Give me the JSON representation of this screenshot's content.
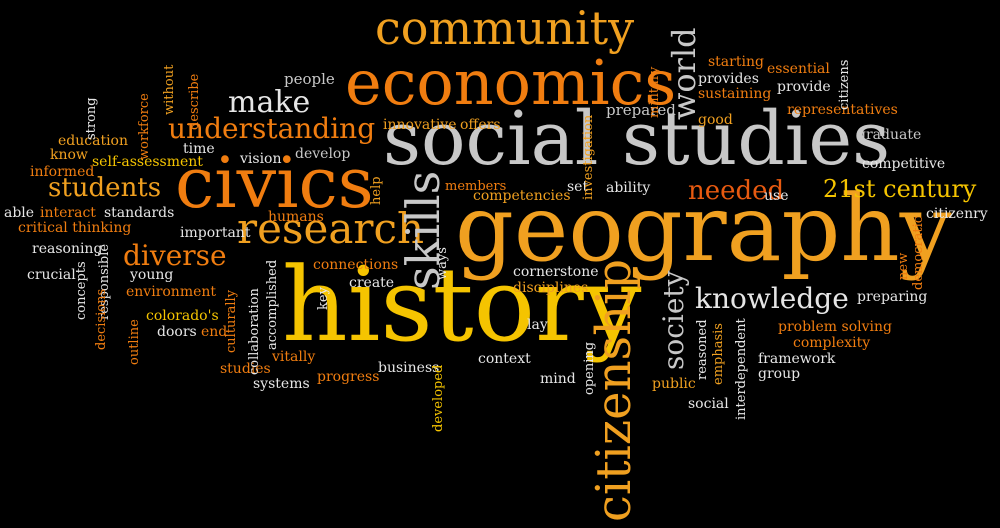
{
  "colors": {
    "background": "#000000",
    "white": "#e6e6e6",
    "light_gray": "#c8c8c8",
    "yellow": "#f5c400",
    "light_orange": "#f0a020",
    "orange": "#f07d10",
    "deep_orange": "#e85a10"
  },
  "words": {
    "geography": "geography",
    "history": "history",
    "social_studies": "social studies",
    "economics": "economics",
    "civics": "civics",
    "community": "community",
    "citizenship": "citizenship",
    "research": "research",
    "skills": "skills",
    "understanding": "understanding",
    "students": "students",
    "world": "world",
    "society": "society",
    "knowledge": "knowledge",
    "needed": "needed",
    "21st_century": "21st century",
    "diverse": "diverse",
    "make": "make",
    "people": "people",
    "without": "without",
    "describe": "describe",
    "workforce": "workforce",
    "strong": "strong",
    "education": "education",
    "know": "know",
    "time": "time",
    "self_assessment": "self-assessment",
    "informed": "informed",
    "vision": "vision",
    "develop": "develop",
    "innovative": "innovative",
    "offers": "offers",
    "opening": "opening",
    "investigation": "investigation",
    "prepared": "prepared",
    "military": "military",
    "good": "good",
    "starting": "starting",
    "essential": "essential",
    "citizens": "citizens",
    "provides": "provides",
    "provide": "provide",
    "sustaining": "sustaining",
    "representatives": "representatives",
    "graduate": "graduate",
    "competitive": "competitive",
    "members": "members",
    "set": "set",
    "competencies": "competencies",
    "ability": "ability",
    "use": "use",
    "citizenry": "citizenry",
    "able": "able",
    "interact": "interact",
    "standards": "standards",
    "critical_thinking": "critical thinking",
    "humans": "humans",
    "important": "important",
    "help": "help",
    "ways": "ways",
    "reasoning": "reasoning",
    "crucial": "crucial",
    "concepts": "concepts",
    "responsible": "responsible",
    "young": "young",
    "environment": "environment",
    "decisions": "decisions",
    "outline": "outline",
    "colorados": "colorado's",
    "doors": "doors",
    "end": "end",
    "culturally": "culturally",
    "collaboration": "collaboration",
    "accomplished": "accomplished",
    "key": "key",
    "connections": "connections",
    "create": "create",
    "cornerstone": "cornerstone",
    "disciplines": "disciplines",
    "lay": "lay",
    "studies": "studies",
    "vitally": "vitally",
    "systems": "systems",
    "progress": "progress",
    "business": "business",
    "context": "context",
    "mind": "mind",
    "developed": "developed",
    "public": "public",
    "social": "social",
    "reasoned": "reasoned",
    "emphasis": "emphasis",
    "interdependent": "interdependent",
    "problem_solving": "problem solving",
    "complexity": "complexity",
    "framework": "framework",
    "group": "group",
    "new": "new",
    "democratic": "democratic",
    "preparing": "preparing"
  }
}
